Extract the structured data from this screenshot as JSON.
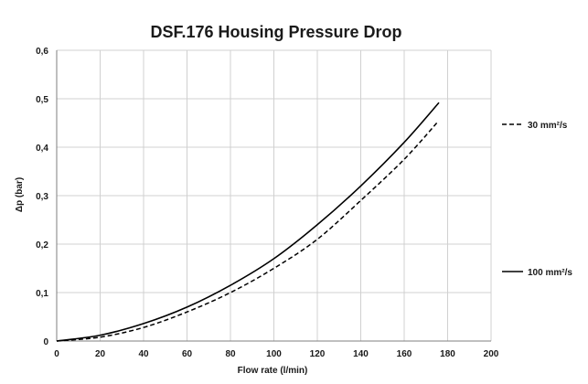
{
  "chart_data": {
    "type": "line",
    "title": "DSF.176 Housing Pressure Drop",
    "xlabel": "Flow rate (l/min)",
    "ylabel": "Δp (bar)",
    "xlim": [
      0,
      200
    ],
    "ylim": [
      0,
      0.6
    ],
    "x_ticks": [
      0,
      20,
      40,
      60,
      80,
      100,
      120,
      140,
      160,
      180,
      200
    ],
    "x_tick_labels": [
      "0",
      "20",
      "40",
      "60",
      "80",
      "100",
      "120",
      "140",
      "160",
      "180",
      "200"
    ],
    "y_ticks": [
      0,
      0.1,
      0.2,
      0.3,
      0.4,
      0.5,
      0.6
    ],
    "y_tick_labels": [
      "0",
      "0,1",
      "0,2",
      "0,3",
      "0,4",
      "0,5",
      "0,6"
    ],
    "grid": true,
    "legend_position": "right",
    "series": [
      {
        "name": "100 mm²/s",
        "style": "solid",
        "color": "#000000",
        "x": [
          0,
          20,
          40,
          60,
          80,
          100,
          120,
          140,
          160,
          176
        ],
        "y": [
          0,
          0.012,
          0.036,
          0.07,
          0.115,
          0.17,
          0.24,
          0.32,
          0.41,
          0.492
        ]
      },
      {
        "name": "30 mm²/s",
        "style": "dashed",
        "color": "#000000",
        "x": [
          0,
          20,
          40,
          60,
          80,
          100,
          120,
          140,
          160,
          175
        ],
        "y": [
          0,
          0.008,
          0.028,
          0.06,
          0.1,
          0.15,
          0.21,
          0.29,
          0.375,
          0.45
        ]
      }
    ]
  }
}
